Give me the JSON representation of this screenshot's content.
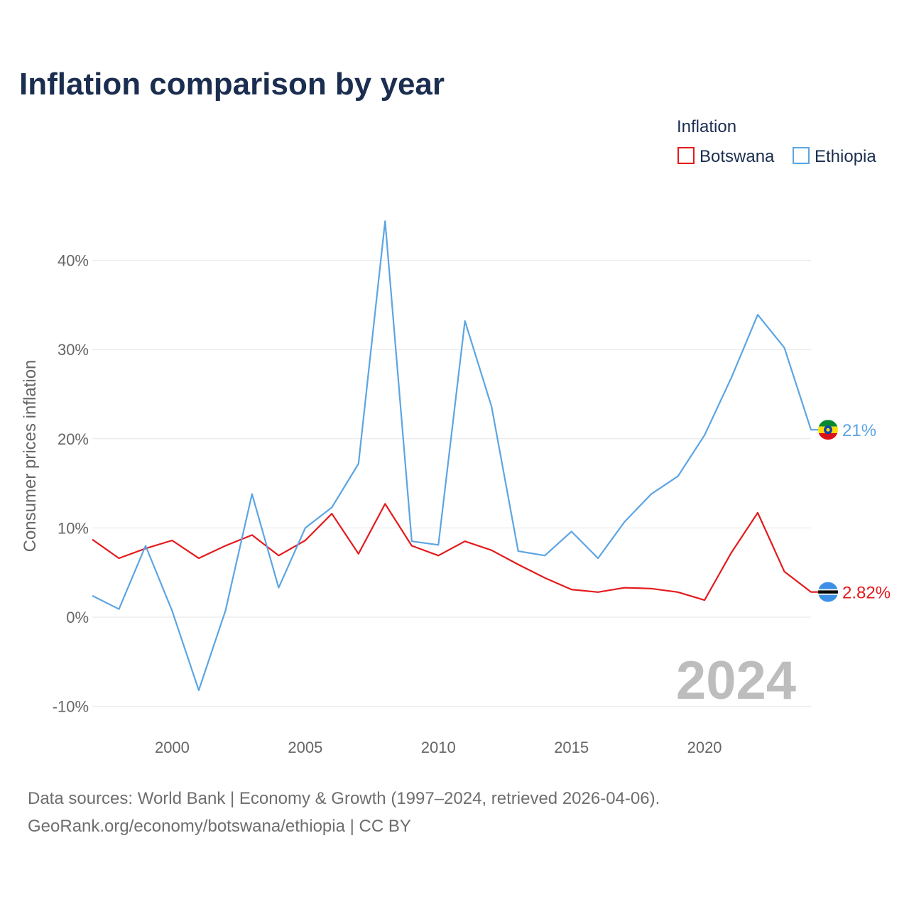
{
  "chart_data": {
    "type": "line",
    "title": "Inflation comparison by year",
    "ylabel": "Consumer prices inflation",
    "xlabel": "",
    "x": [
      1997,
      1998,
      1999,
      2000,
      2001,
      2002,
      2003,
      2004,
      2005,
      2006,
      2007,
      2008,
      2009,
      2010,
      2011,
      2012,
      2013,
      2014,
      2015,
      2016,
      2017,
      2018,
      2019,
      2020,
      2021,
      2022,
      2023,
      2024
    ],
    "xlim": [
      1997,
      2024
    ],
    "ylim": [
      -10,
      45
    ],
    "x_ticks": [
      2000,
      2005,
      2010,
      2015,
      2020
    ],
    "y_ticks": [
      {
        "value": -10,
        "label": "-10%"
      },
      {
        "value": 0,
        "label": "0%"
      },
      {
        "value": 10,
        "label": "10%"
      },
      {
        "value": 20,
        "label": "20%"
      },
      {
        "value": 30,
        "label": "30%"
      },
      {
        "value": 40,
        "label": "40%"
      }
    ],
    "grid": true,
    "legend": {
      "title": "Inflation",
      "position": "top-right"
    },
    "series": [
      {
        "name": "Botswana",
        "color": "#e41a1c",
        "end_label": "2.82%",
        "flag_icon": "botswana-flag-icon",
        "values": [
          8.7,
          6.6,
          7.7,
          8.6,
          6.6,
          8.0,
          9.2,
          6.9,
          8.6,
          11.6,
          7.1,
          12.7,
          8.0,
          6.9,
          8.5,
          7.5,
          5.9,
          4.4,
          3.1,
          2.8,
          3.3,
          3.2,
          2.8,
          1.9,
          7.2,
          11.7,
          5.1,
          2.82
        ]
      },
      {
        "name": "Ethiopia",
        "color": "#5ca5e3",
        "end_label": "21%",
        "flag_icon": "ethiopia-flag-icon",
        "values": [
          2.4,
          0.9,
          8.0,
          0.7,
          -8.2,
          0.7,
          13.8,
          3.3,
          10.0,
          12.3,
          17.2,
          44.4,
          8.5,
          8.1,
          33.2,
          23.6,
          7.4,
          6.9,
          9.6,
          6.6,
          10.7,
          13.8,
          15.8,
          20.4,
          26.8,
          33.9,
          30.2,
          21.0
        ]
      }
    ],
    "annotation": "2024"
  },
  "footer": {
    "line1": "Data sources: World Bank | Economy & Growth (1997–2024, retrieved 2026-04-06).",
    "line2": "GeoRank.org/economy/botswana/ethiopia | CC BY"
  }
}
